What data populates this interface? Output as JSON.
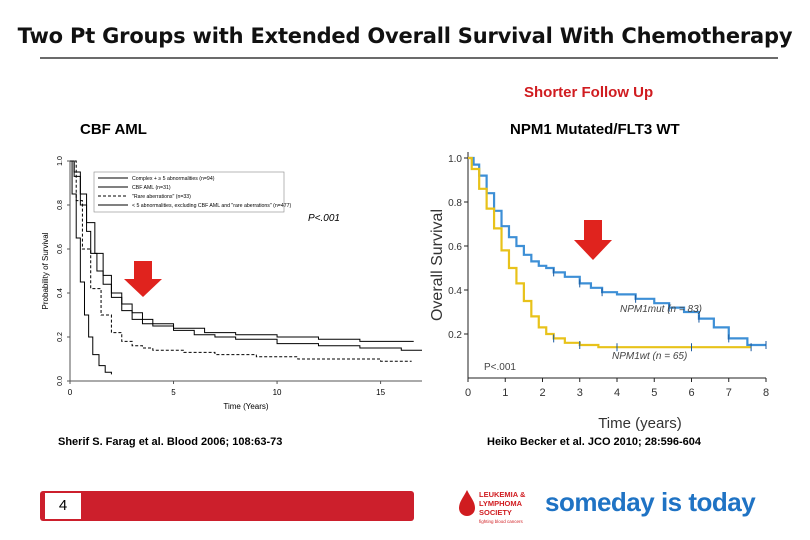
{
  "slide": {
    "title": "Two Pt Groups with Extended Overall Survival With Chemotherapy",
    "subtitle": "Shorter Follow Up",
    "page_number": "4"
  },
  "left_panel": {
    "label": "CBF AML",
    "citation": "Sherif S. Farag et al. Blood 2006; 108:63-73"
  },
  "right_panel": {
    "label": "NPM1 Mutated/FLT3 WT",
    "citation": "Heiko Becker et al. JCO 2010; 28:596-604"
  },
  "logo": {
    "org_line1": "LEUKEMIA &",
    "org_line2": "LYMPHOMA",
    "org_line3": "SOCIETY",
    "org_tag": "fighting blood cancers",
    "slogan": "someday is today"
  },
  "colors": {
    "accent_red": "#d01c20",
    "bar_red": "#cc1f2c",
    "series_blue": "#3d8fd6",
    "series_yellow": "#e8c21a",
    "slogan_blue": "#1f73c4"
  },
  "chart_data": [
    {
      "type": "line",
      "xlabel": "Time (Years)",
      "ylabel": "Probability of Survival",
      "xlim": [
        0,
        17
      ],
      "ylim": [
        0,
        1.0
      ],
      "x_ticks": [
        "0",
        "5",
        "10",
        "15"
      ],
      "y_ticks": [
        "0.0",
        "0.2",
        "0.4",
        "0.6",
        "0.8",
        "1.0"
      ],
      "annotation": "P<.001",
      "legend_position": "top-left",
      "series": [
        {
          "name": "Complex + ≥ 5 abnormalities (n=94)",
          "style": "solid",
          "color": "#000000",
          "x": [
            0,
            0.1,
            0.3,
            0.5,
            0.7,
            0.9,
            1.1,
            1.4,
            1.7,
            2.0
          ],
          "y": [
            1.0,
            0.85,
            0.65,
            0.45,
            0.3,
            0.2,
            0.12,
            0.07,
            0.04,
            0.03
          ]
        },
        {
          "name": "CBF AML (n=31)",
          "style": "solid",
          "color": "#000000",
          "x": [
            0,
            0.2,
            0.5,
            0.8,
            1.0,
            1.3,
            1.6,
            2.0,
            2.5,
            3.0,
            3.5,
            4.0,
            5.0,
            6.5,
            8.0,
            10.0,
            12.0,
            14.0,
            16.0,
            16.6
          ],
          "y": [
            1.0,
            0.93,
            0.8,
            0.68,
            0.58,
            0.5,
            0.44,
            0.38,
            0.32,
            0.28,
            0.26,
            0.25,
            0.24,
            0.22,
            0.21,
            0.2,
            0.19,
            0.18,
            0.18,
            0.18
          ]
        },
        {
          "name": "\"Rare aberrations\" (n=33)",
          "style": "dashed",
          "color": "#000000",
          "x": [
            0,
            0.3,
            0.6,
            1.0,
            1.5,
            2.0,
            2.5,
            3.0,
            3.5,
            4.0,
            5.5,
            7.0,
            9.0,
            11.0,
            13.0,
            15.0,
            16.5
          ],
          "y": [
            1.0,
            0.82,
            0.6,
            0.42,
            0.3,
            0.22,
            0.18,
            0.16,
            0.15,
            0.14,
            0.13,
            0.12,
            0.11,
            0.1,
            0.1,
            0.09,
            0.09
          ]
        },
        {
          "name": "< 5 abnormalities, excluding CBF AML and \"rare aberrations\" (n=477)",
          "style": "solid",
          "color": "#000000",
          "x": [
            0,
            0.2,
            0.5,
            0.8,
            1.2,
            1.6,
            2.0,
            2.5,
            3.0,
            3.5,
            4.0,
            5.0,
            6.0,
            7.0,
            8.0,
            10.0,
            12.0,
            14.0,
            16.0,
            17.0
          ],
          "y": [
            1.0,
            0.95,
            0.85,
            0.72,
            0.58,
            0.48,
            0.4,
            0.35,
            0.31,
            0.28,
            0.26,
            0.23,
            0.21,
            0.2,
            0.19,
            0.17,
            0.16,
            0.15,
            0.14,
            0.14
          ]
        }
      ]
    },
    {
      "type": "line",
      "xlabel": "Time (years)",
      "ylabel": "Overall Survival",
      "xlim": [
        0,
        8
      ],
      "ylim": [
        0,
        1.0
      ],
      "x_ticks": [
        "0",
        "1",
        "2",
        "3",
        "4",
        "5",
        "6",
        "7",
        "8"
      ],
      "y_ticks": [
        "0.2",
        "0.4",
        "0.6",
        "0.8",
        "1.0"
      ],
      "annotation": "P<.001",
      "series": [
        {
          "name": "NPM1mut (n = 83)",
          "color": "#3d8fd6",
          "x": [
            0,
            0.15,
            0.3,
            0.5,
            0.7,
            0.9,
            1.1,
            1.3,
            1.5,
            1.7,
            1.9,
            2.1,
            2.3,
            2.6,
            3.0,
            3.3,
            3.6,
            4.0,
            4.5,
            5.0,
            5.4,
            5.8,
            6.2,
            6.6,
            7.0,
            7.5,
            8.0
          ],
          "y": [
            1.0,
            0.97,
            0.92,
            0.84,
            0.76,
            0.69,
            0.64,
            0.6,
            0.56,
            0.53,
            0.51,
            0.5,
            0.48,
            0.46,
            0.43,
            0.41,
            0.39,
            0.38,
            0.36,
            0.34,
            0.32,
            0.3,
            0.27,
            0.23,
            0.18,
            0.15,
            0.15
          ]
        },
        {
          "name": "NPM1wt (n = 65)",
          "color": "#e8c21a",
          "x": [
            0,
            0.1,
            0.3,
            0.5,
            0.7,
            0.9,
            1.1,
            1.3,
            1.5,
            1.7,
            1.9,
            2.1,
            2.3,
            2.6,
            3.0,
            3.5,
            4.0,
            5.0,
            6.0,
            7.0,
            7.6
          ],
          "y": [
            1.0,
            0.95,
            0.86,
            0.77,
            0.68,
            0.58,
            0.5,
            0.43,
            0.35,
            0.28,
            0.23,
            0.2,
            0.18,
            0.16,
            0.15,
            0.14,
            0.14,
            0.14,
            0.14,
            0.14,
            0.14
          ]
        }
      ]
    }
  ]
}
